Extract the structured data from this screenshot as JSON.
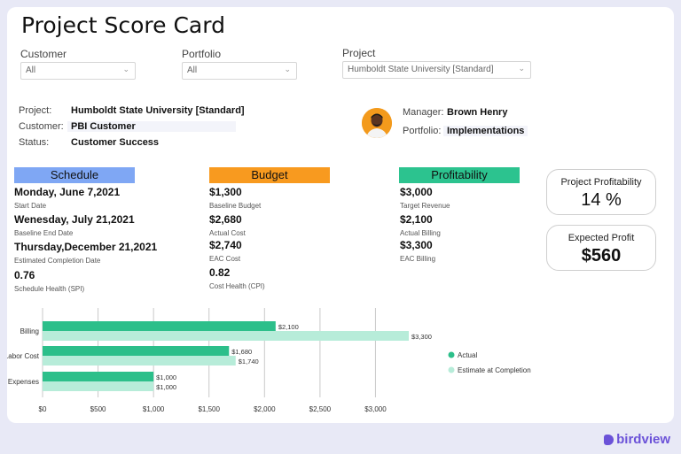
{
  "title": "Project Score Card",
  "filters": [
    {
      "label": "Customer",
      "value": "All"
    },
    {
      "label": "Portfolio",
      "value": "All"
    },
    {
      "label": "Project",
      "value": "Humboldt State University [Standard]"
    }
  ],
  "info": {
    "project_label": "Project:",
    "project_value": "Humboldt State University [Standard]",
    "customer_label": "Customer:",
    "customer_value": "PBI Customer",
    "status_label": "Status:",
    "status_value": "Customer Success",
    "manager_label": "Manager:",
    "manager_value": "Brown Henry",
    "portfolio_label": "Portfolio:",
    "portfolio_value": "Implementations"
  },
  "sections": {
    "schedule": {
      "header": "Schedule",
      "color": "#7fa7f4",
      "metrics": [
        {
          "value": "Monday, June 7,2021",
          "label": "Start Date"
        },
        {
          "value": "Wenesday, July 21,2021",
          "label": "Baseline End Date"
        },
        {
          "value": "Thursday,December 21,2021",
          "label": "Estimated Completion Date"
        },
        {
          "value": "0.76",
          "label": "Schedule Health (SPI)"
        }
      ]
    },
    "budget": {
      "header": "Budget",
      "color": "#f89a1f",
      "metrics": [
        {
          "value": "$1,300",
          "label": "Baseline Budget"
        },
        {
          "value": "$2,680",
          "label": "Actual Cost"
        },
        {
          "value": "$2,740",
          "label": "EAC Cost"
        },
        {
          "value": "0.82",
          "label": "Cost Health (CPI)"
        }
      ]
    },
    "profitability": {
      "header": "Profitability",
      "color": "#2cc38f",
      "metrics": [
        {
          "value": "$3,000",
          "label": "Target Revenue"
        },
        {
          "value": "$2,100",
          "label": "Actual Billing"
        },
        {
          "value": "$3,300",
          "label": "EAC Billing"
        }
      ]
    }
  },
  "kpis": {
    "project_profitability": {
      "title": "Project Profitability",
      "value": "14 %"
    },
    "expected_profit": {
      "title": "Expected Profit",
      "value": "$560"
    }
  },
  "chart_data": {
    "type": "bar",
    "orientation": "horizontal",
    "categories": [
      "Billing",
      "Labor Cost",
      "Expenses"
    ],
    "series": [
      {
        "name": "Actual",
        "color": "#2cbf8a",
        "values": [
          2100,
          1680,
          1000
        ],
        "labels": [
          "$2,100",
          "$1,680",
          "$1,000"
        ]
      },
      {
        "name": "Estimate at Completion",
        "color": "#b7ecd9",
        "values": [
          3300,
          1740,
          1000
        ],
        "labels": [
          "$3,300",
          "$1,740",
          "$1,000"
        ]
      }
    ],
    "xlim": [
      0,
      3300
    ],
    "xticks": [
      0,
      500,
      1000,
      1500,
      2000,
      2500,
      3000
    ],
    "xtick_labels": [
      "$0",
      "$500",
      "$1,000",
      "$1,500",
      "$2,000",
      "$2,500",
      "$3,000"
    ],
    "grid": true,
    "legend": "right"
  },
  "brand": "birdview"
}
